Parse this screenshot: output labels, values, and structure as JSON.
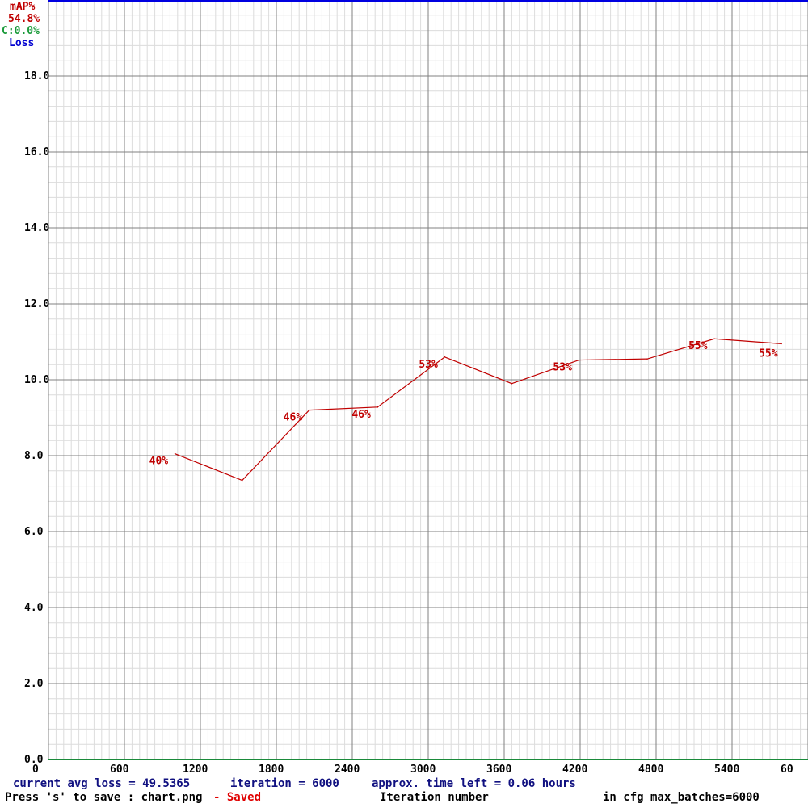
{
  "legend": {
    "map_label": "mAP%",
    "map_value": "54.8%",
    "c_label": "C:0.0%",
    "loss_label": "Loss"
  },
  "status": {
    "avg_loss": "current avg loss = 49.5365",
    "iteration": "iteration = 6000",
    "time_left": "approx. time left = 0.06 hours",
    "save_hint": "Press 's' to save : chart.png",
    "saved": "- Saved",
    "xlabel": "Iteration number",
    "max_batches": "in cfg max_batches=6000"
  },
  "colors": {
    "map_line": "#c00000",
    "loss_line": "#0000e0",
    "c_text": "#1a9a3a",
    "baseline": "#1a8a3a"
  },
  "chart_data": {
    "type": "line",
    "title": "",
    "xlabel": "Iteration number",
    "ylabel": "",
    "xlim": [
      0,
      6000
    ],
    "ylim": [
      0,
      20
    ],
    "grid": true,
    "y_ticks": [
      "0.0",
      "2.0",
      "4.0",
      "6.0",
      "8.0",
      "10.0",
      "12.0",
      "14.0",
      "16.0",
      "18.0"
    ],
    "x_ticks": [
      "0",
      "600",
      "1200",
      "1800",
      "2400",
      "3000",
      "3600",
      "4200",
      "4800",
      "5400",
      "60"
    ],
    "series": [
      {
        "name": "mAP%",
        "x": [
          1000,
          1530,
          2060,
          2600,
          3130,
          3660,
          4190,
          4730,
          5260,
          5790
        ],
        "y": [
          8.05,
          7.35,
          9.2,
          9.28,
          10.6,
          9.9,
          10.52,
          10.55,
          11.08,
          10.95
        ],
        "labels": [
          "40%",
          "",
          "46%",
          "46%",
          "53%",
          "",
          "53%",
          "",
          "55%",
          "55%"
        ]
      },
      {
        "name": "Loss",
        "x": [
          0,
          6000
        ],
        "y": [
          20,
          20
        ]
      }
    ]
  }
}
